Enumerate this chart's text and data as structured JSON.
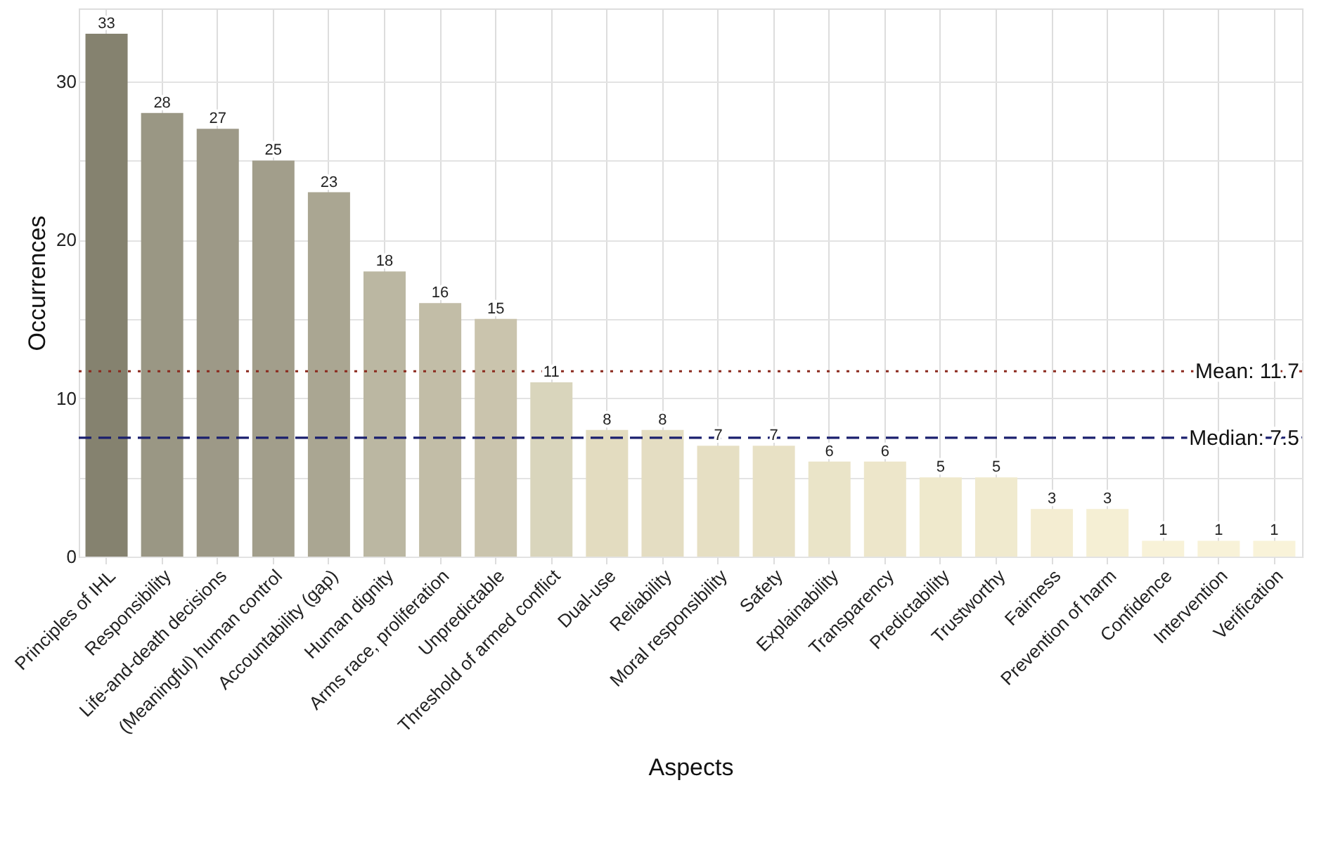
{
  "chart_data": {
    "type": "bar",
    "xlabel": "Aspects",
    "ylabel": "Occurrences",
    "categories": [
      "Principles of IHL",
      "Responsibility",
      "Life-and-death decisions",
      "(Meaningful) human control",
      "Accountability (gap)",
      "Human dignity",
      "Arms race, proliferation",
      "Unpredictable",
      "Threshold of armed conflict",
      "Dual-use",
      "Reliability",
      "Moral responsibility",
      "Safety",
      "Explainability",
      "Transparency",
      "Predictability",
      "Trustworthy",
      "Fairness",
      "Prevention of harm",
      "Confidence",
      "Intervention",
      "Verification"
    ],
    "values": [
      33,
      28,
      27,
      25,
      23,
      18,
      16,
      15,
      11,
      8,
      8,
      7,
      7,
      6,
      6,
      5,
      5,
      3,
      3,
      1,
      1,
      1
    ],
    "colors": [
      "#85826f",
      "#9a9784",
      "#9d9987",
      "#a29e8b",
      "#aaa692",
      "#bbb7a2",
      "#c2bda7",
      "#cac4ad",
      "#d9d5bc",
      "#e3dcc0",
      "#e4ddc2",
      "#e6dfc3",
      "#e8e1c5",
      "#eae4c8",
      "#ede6ca",
      "#efe9cc",
      "#f0eace",
      "#f4edd2",
      "#f5efd4",
      "#f8f2d8",
      "#f8f2d8",
      "#f9f3d9"
    ],
    "data_labels": true,
    "ylim": [
      0,
      34.6
    ],
    "yticks": [
      0,
      {
        "value": 5,
        "label": null
      },
      10,
      {
        "value": 15,
        "label": null
      },
      20,
      {
        "value": 25,
        "label": null
      },
      30
    ],
    "grid": true,
    "ref_lines": [
      {
        "axis": "y",
        "value": 11.7,
        "label": "Mean: 11.7",
        "color": "#8b2a1e",
        "line_style": "dotted"
      },
      {
        "axis": "y",
        "value": 7.5,
        "label": "Median: 7.5",
        "color": "#1a1f6e",
        "line_style": "dashed"
      }
    ]
  }
}
